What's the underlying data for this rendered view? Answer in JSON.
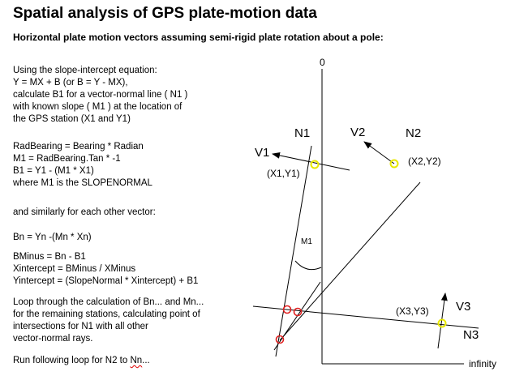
{
  "title": "Spatial analysis of GPS plate-motion data",
  "subtitle": "Horizontal plate motion vectors assuming semi-rigid plate rotation about a pole:",
  "text_lines": [
    "Using the slope-intercept equation:",
    "Y = MX + B  (or B = Y - MX),",
    "calculate B1 for a vector-normal line ( N1 )",
    "with known slope ( M1 ) at the location of",
    "the GPS station (X1 and Y1)",
    "RadBearing = Bearing * Radian",
    "M1 = RadBearing.Tan * -1",
    "B1 = Y1 - (M1 * X1)",
    "where M1 is the SLOPENORMAL",
    "and similarly for each other vector:",
    "Bn = Yn -(Mn * Xn)",
    "BMinus = Bn - B1",
    "Xintercept = BMinus / XMinus",
    "Yintercept = (SlopeNormal * Xintercept) + B1",
    "Loop through the calculation of Bn... and Mn...",
    "for the remaining stations, calculating point of",
    "intersections for N1 with all other",
    "vector-normal rays."
  ],
  "last_line_prefix": "Run following loop for N2 to ",
  "last_line_squiggle": "Nn",
  "last_line_suffix": "...",
  "diagram": {
    "axis_y_label": "0",
    "axis_x_label": "infinity",
    "angle_label": "M1",
    "stations": [
      {
        "vector": "V1",
        "normal": "N1",
        "coords": "(X1,Y1)"
      },
      {
        "vector": "V2",
        "normal": "N2",
        "coords": "(X2,Y2)"
      },
      {
        "vector": "V3",
        "normal": "N3",
        "coords": "(X3,Y3)"
      }
    ],
    "colors": {
      "station_marker": "#e8e800",
      "intersection_marker": "#e02020",
      "line": "#000000"
    }
  }
}
